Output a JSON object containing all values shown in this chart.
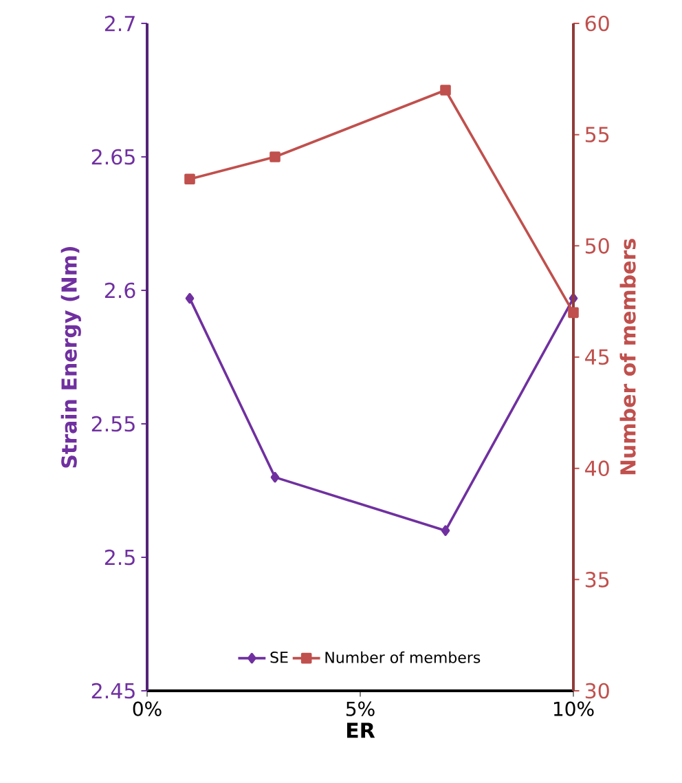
{
  "chart_data": {
    "type": "line",
    "xlabel": "ER",
    "ylabel": "Strain Energy (Nm)",
    "y2label": "Number of members",
    "x": [
      1,
      3,
      7,
      10
    ],
    "xlim": [
      0,
      10
    ],
    "xticks": [
      {
        "value": 0,
        "label": "0%"
      },
      {
        "value": 5,
        "label": "5%"
      },
      {
        "value": 10,
        "label": "10%"
      }
    ],
    "ylim": [
      2.45,
      2.7
    ],
    "yticks": [
      2.45,
      2.5,
      2.55,
      2.6,
      2.65,
      2.7
    ],
    "y2lim": [
      30,
      60
    ],
    "y2ticks": [
      30,
      35,
      40,
      45,
      50,
      55,
      60
    ],
    "series": [
      {
        "name": "SE",
        "color": "#7030a0",
        "marker": "diamond",
        "values": [
          2.597,
          2.53,
          2.51,
          2.597
        ]
      },
      {
        "name": "Number of members",
        "color": "#c0504d",
        "marker": "square",
        "axis": "y2",
        "values": [
          53,
          54,
          57,
          47
        ]
      }
    ],
    "grid": false,
    "legend": "bottom"
  }
}
